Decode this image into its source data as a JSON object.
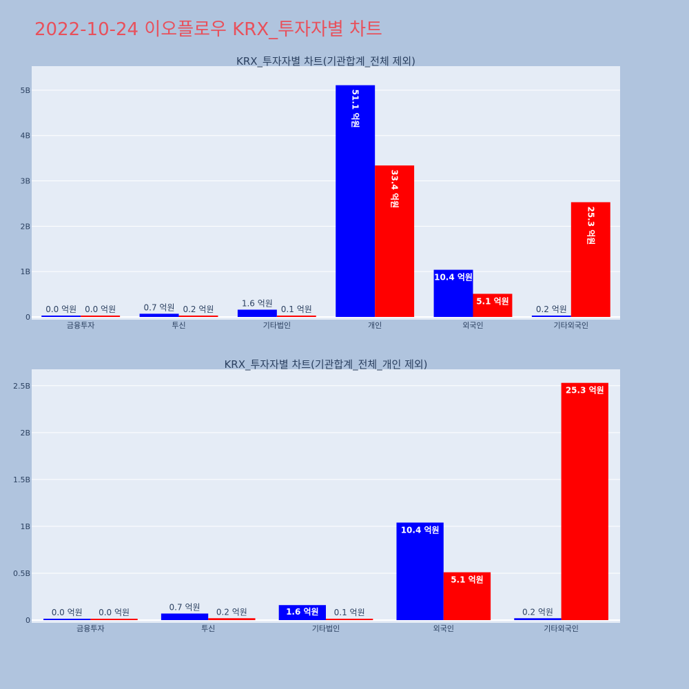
{
  "title": "2022-10-24 이오플로우 KRX_투자자별 차트",
  "colors": {
    "buy": "#0000ff",
    "sell": "#ff0000",
    "plot_bg": "#e5ecf6",
    "paper_bg": "#b0c4de",
    "title": "#e8505b"
  },
  "chart_data": [
    {
      "type": "bar",
      "title": "KRX_투자자별 차트(기관합계_전체 제외)",
      "categories": [
        "금융투자",
        "투신",
        "기타법인",
        "개인",
        "외국인",
        "기타외국인"
      ],
      "series": [
        {
          "color": "#0000ff",
          "values": [
            0.0,
            0.07,
            0.16,
            5.11,
            1.04,
            0.02
          ],
          "labels": [
            "0.0 억원",
            "0.7 억원",
            "1.6 억원",
            "51.1 억원",
            "10.4 억원",
            "0.2 억원"
          ]
        },
        {
          "color": "#ff0000",
          "values": [
            0.0,
            0.02,
            0.01,
            3.34,
            0.51,
            2.53
          ],
          "labels": [
            "0.0 억원",
            "0.2 억원",
            "0.1 억원",
            "33.4 억원",
            "5.1 억원",
            "25.3 억원"
          ]
        }
      ],
      "yticks": [
        0,
        1,
        2,
        3,
        4,
        5
      ],
      "ytick_labels": [
        "0",
        "1B",
        "2B",
        "3B",
        "4B",
        "5B"
      ],
      "ylim": [
        0,
        5.5
      ],
      "grid": true
    },
    {
      "type": "bar",
      "title": "KRX_투자자별 차트(기관합계_전체_개인 제외)",
      "categories": [
        "금융투자",
        "투신",
        "기타법인",
        "외국인",
        "기타외국인"
      ],
      "series": [
        {
          "color": "#0000ff",
          "values": [
            0.0,
            0.07,
            0.16,
            1.04,
            0.02
          ],
          "labels": [
            "0.0 억원",
            "0.7 억원",
            "1.6 억원",
            "10.4 억원",
            "0.2 억원"
          ]
        },
        {
          "color": "#ff0000",
          "values": [
            0.0,
            0.02,
            0.01,
            0.51,
            2.53
          ],
          "labels": [
            "0.0 억원",
            "0.2 억원",
            "0.1 억원",
            "5.1 억원",
            "25.3 억원"
          ]
        }
      ],
      "yticks": [
        0,
        0.5,
        1,
        1.5,
        2,
        2.5
      ],
      "ytick_labels": [
        "0",
        "0.5B",
        "1B",
        "1.5B",
        "2B",
        "2.5B"
      ],
      "ylim": [
        0,
        2.66
      ],
      "grid": true
    }
  ]
}
